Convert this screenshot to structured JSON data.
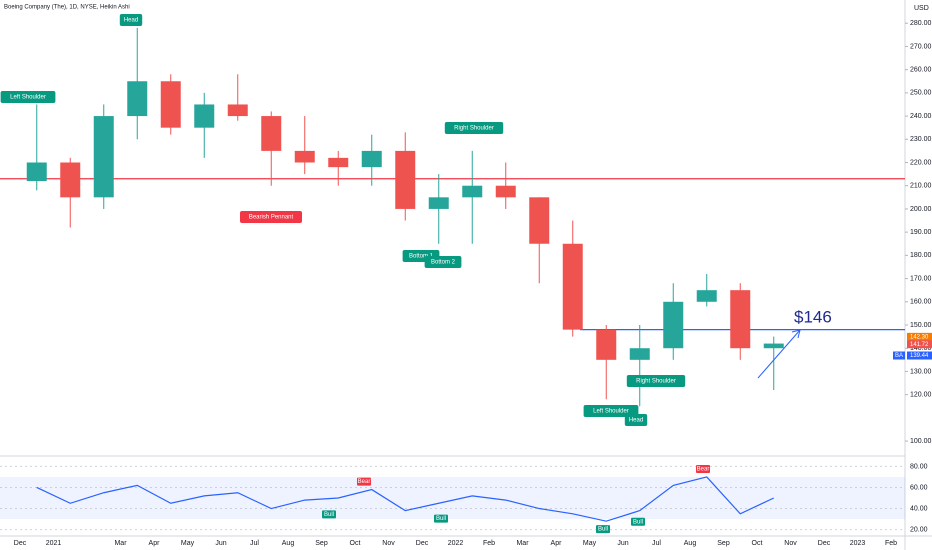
{
  "chart_data": {
    "type": "candlestick",
    "title": "Boeing Company (The), 1D, NYSE, Heikin Ashi",
    "currency": "USD",
    "categories": [
      "Dec",
      "2021",
      null,
      "Mar",
      "Apr",
      "May",
      "Jun",
      "Jul",
      "Aug",
      "Sep",
      "Oct",
      "Nov",
      "Dec",
      "2022",
      "Feb",
      "Mar",
      "Apr",
      "May",
      "Jun",
      "Jul",
      "Aug",
      "Sep",
      "Oct",
      "Nov",
      "Dec",
      "2023",
      "Feb"
    ],
    "open": [
      212,
      220,
      205,
      240,
      255,
      235,
      245,
      240,
      225,
      222,
      218,
      225,
      200,
      205,
      210,
      205,
      185,
      148,
      135,
      140,
      160,
      165,
      140,
      null,
      null,
      null,
      null
    ],
    "high": [
      245,
      222,
      245,
      278,
      258,
      250,
      258,
      242,
      240,
      225,
      232,
      233,
      215,
      225,
      220,
      205,
      195,
      150,
      150,
      168,
      172,
      168,
      145,
      null,
      null,
      null,
      null
    ],
    "low": [
      208,
      192,
      200,
      230,
      232,
      222,
      238,
      210,
      215,
      210,
      210,
      195,
      185,
      185,
      200,
      168,
      145,
      118,
      115,
      135,
      158,
      135,
      122,
      null,
      null,
      null,
      null
    ],
    "close": [
      220,
      205,
      240,
      255,
      235,
      245,
      240,
      225,
      220,
      218,
      225,
      200,
      205,
      210,
      205,
      185,
      148,
      135,
      140,
      160,
      165,
      140,
      142,
      null,
      null,
      null,
      null
    ],
    "up_color": "#26a69a",
    "down_color": "#ef5350",
    "ylim": [
      94,
      290
    ],
    "yticks": [
      {
        "value": 100,
        "label": "100.00"
      },
      {
        "value": 120,
        "label": "120.00"
      },
      {
        "value": 130,
        "label": "130.00"
      },
      {
        "value": 140,
        "label": "140.00"
      },
      {
        "value": 150,
        "label": "150.00"
      },
      {
        "value": 160,
        "label": "160.00"
      },
      {
        "value": 170,
        "label": "170.00"
      },
      {
        "value": 180,
        "label": "180.00"
      },
      {
        "value": 190,
        "label": "190.00"
      },
      {
        "value": 200,
        "label": "200.00"
      },
      {
        "value": 210,
        "label": "210.00"
      },
      {
        "value": 220,
        "label": "220.00"
      },
      {
        "value": 230,
        "label": "230.00"
      },
      {
        "value": 240,
        "label": "240.00"
      },
      {
        "value": 250,
        "label": "250.00"
      },
      {
        "value": 260,
        "label": "260.00"
      },
      {
        "value": 270,
        "label": "270.00"
      },
      {
        "value": 280,
        "label": "280.00"
      }
    ],
    "levels": [
      {
        "value": 213,
        "color": "#f23645"
      },
      {
        "value": 148,
        "color": "#2962ff"
      }
    ],
    "price_labels": [
      {
        "value": 142.3,
        "label": "142.30",
        "color": "#f57c00"
      },
      {
        "value": 141.72,
        "label": "141.72",
        "color": "#ef5350"
      },
      {
        "value": 139.44,
        "label": "139.44",
        "color": "#2962ff",
        "symbol": "BA"
      }
    ],
    "annotations": [
      "Head",
      "Left Shoulder",
      "Right Shoulder",
      "Bearish Pennant",
      "Bottom 1",
      "Bottom 2",
      "Left Shoulder",
      "Right Shoulder",
      "Head"
    ],
    "target": "$146",
    "rsi": {
      "values": [
        60,
        45,
        55,
        62,
        45,
        52,
        55,
        40,
        48,
        50,
        58,
        38,
        45,
        52,
        48,
        40,
        35,
        28,
        38,
        62,
        70,
        35,
        50,
        null,
        null,
        null,
        null
      ],
      "color": "#2962ff",
      "ylim": [
        12,
        88
      ],
      "yticks": [
        {
          "value": 20,
          "label": "20.00"
        },
        {
          "value": 40,
          "label": "40.00"
        },
        {
          "value": 60,
          "label": "60.00"
        },
        {
          "value": 80,
          "label": "80.00"
        }
      ],
      "signals": [
        "Bull",
        "Bear",
        "Bull",
        "Bull",
        "Bull",
        "Bear"
      ]
    }
  }
}
